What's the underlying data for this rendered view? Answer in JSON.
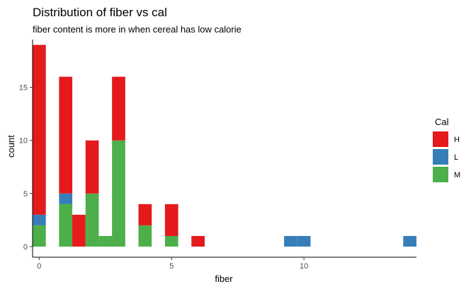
{
  "chart_data": {
    "type": "bar",
    "stacked": true,
    "title": "Distribution of fiber vs cal",
    "subtitle": "fiber content is more in when cereal has low calorie",
    "xlabel": "fiber",
    "ylabel": "count",
    "xlim": [
      -0.25,
      14.25
    ],
    "ylim": [
      -1,
      19.5
    ],
    "xticks": [
      0,
      5,
      10
    ],
    "yticks": [
      0,
      5,
      10,
      15
    ],
    "bin_width": 0.5,
    "grid": false,
    "legend": {
      "title": "Cal",
      "position": "right",
      "entries": [
        {
          "label": "H",
          "color": "#e41a1c"
        },
        {
          "label": "L",
          "color": "#377eb8"
        },
        {
          "label": "M",
          "color": "#4daf4a"
        }
      ]
    },
    "bins": [
      0,
      1,
      1.5,
      2,
      2.5,
      3,
      4,
      5,
      6,
      9.5,
      10,
      14
    ],
    "series": [
      {
        "name": "M",
        "color": "#4daf4a",
        "values": [
          2,
          4,
          0,
          5,
          1,
          10,
          2,
          1,
          0,
          0,
          0,
          0
        ]
      },
      {
        "name": "L",
        "color": "#377eb8",
        "values": [
          1,
          1,
          0,
          0,
          0,
          0,
          0,
          0,
          0,
          1,
          1,
          1
        ]
      },
      {
        "name": "H",
        "color": "#e41a1c",
        "values": [
          16,
          11,
          3,
          5,
          0,
          6,
          2,
          3,
          1,
          0,
          0,
          0
        ]
      }
    ],
    "extra_bars": [
      {
        "name": "M",
        "color": "#4daf4a",
        "bin": 2.75,
        "value": 1
      }
    ]
  }
}
